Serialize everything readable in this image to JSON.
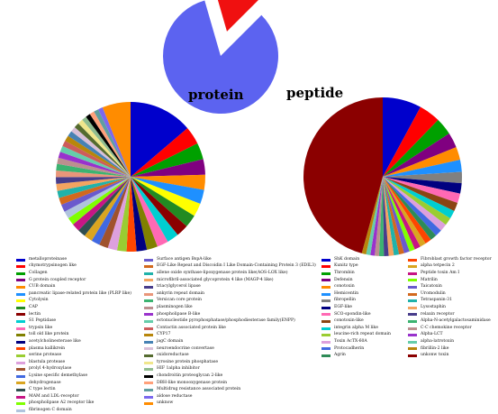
{
  "chart_data": [
    {
      "type": "pie",
      "title": "",
      "categories": [
        "protein",
        "peptide"
      ],
      "values": [
        83,
        17
      ],
      "colors": [
        "#5c63f0",
        "#f01010"
      ],
      "exploded": [
        "peptide"
      ]
    },
    {
      "type": "pie",
      "title": "",
      "group": "protein",
      "categories": [
        "metalloproteinase",
        "chymotrypsinogen like",
        "Collagen",
        "G protein coupled receptor",
        "CUB domain",
        "pancreatic lipase-related protein like (PLRP like)",
        "Cytolysin",
        "CAP",
        "lectin",
        "S1 Peptidase",
        "trypsin like",
        "toll old like protein",
        "acetylcholinesterase like",
        "plasma kallikrein",
        "serine protease",
        "blastula protease",
        "prolyl 4-hydroxylase",
        "Lysine specific demethylase",
        "dehydrogenase",
        "C type lectin",
        "MAM and LDL-receptor",
        "phospholipase A2 receptor like",
        "fibrinogen C domain",
        "Surface antigen BspA-like",
        "EGF-Like Repeat and Discoidin I Like Domain-Containing Protein 3 (EDIL3)",
        "allene oxide synthase-lipoxygenase protein like(AOS-LOX like)",
        "microfibril-associated glycoprotein 4 like (MAGP-4 like)",
        "triacylglycerol lipase",
        "ankyrin repeat domain",
        "Versican core protein",
        "plasminogen like",
        "phospholipase B-like",
        "ectonucleotide pyrophosphatase/phosphodiesterase family(ENPP)",
        "Contactin associated protein like",
        "CYP17",
        "jagC domain",
        "neuroendocrine convertase",
        "oxidoreductase",
        "tyrosine protein phosphatase",
        "HIF 1alpha inhibitor",
        "chondroitin proteoglycan 2-like",
        "DBH-like monooxygenase protein",
        "Multidrug resistance associated protein",
        "aldose reductase",
        "unknow"
      ],
      "values": [
        13.5,
        3.8,
        3.5,
        3.3,
        3.2,
        3,
        2.8,
        2.7,
        2.6,
        2.5,
        2.4,
        2.3,
        2.2,
        2.1,
        2,
        2,
        1.9,
        1.8,
        1.8,
        1.7,
        1.7,
        1.6,
        1.6,
        1.6,
        1.5,
        1.5,
        1.5,
        1.4,
        1.4,
        1.4,
        1.3,
        1.3,
        1.3,
        1.2,
        1.2,
        1.2,
        1.1,
        1.1,
        1.1,
        1,
        1,
        1,
        1,
        1,
        6
      ],
      "colors": [
        "#0000cc",
        "#ff0000",
        "#00a000",
        "#800080",
        "#ff8c00",
        "#1e90ff",
        "#ffff00",
        "#228b22",
        "#8b0000",
        "#00ced1",
        "#ff69b4",
        "#808000",
        "#000080",
        "#ff4500",
        "#9acd32",
        "#dda0dd",
        "#a0522d",
        "#4169e1",
        "#daa520",
        "#2f4f4f",
        "#c71585",
        "#7fff00",
        "#b0c4de",
        "#6a5acd",
        "#d2691e",
        "#20b2aa",
        "#f4a460",
        "#483d8b",
        "#e9967a",
        "#3cb371",
        "#bc8f8f",
        "#9932cc",
        "#66cdaa",
        "#cd5c5c",
        "#b8860b",
        "#4682b4",
        "#d8bfd8",
        "#556b2f",
        "#f0e68c",
        "#8fbc8f",
        "#000000",
        "#ffa07a",
        "#5f9ea0",
        "#7b68ee",
        "#ff8c00"
      ]
    },
    {
      "type": "pie",
      "title": "",
      "group": "peptide",
      "categories": [
        "ShK domain",
        "Kunitz type",
        "Thrombin",
        "Defensin",
        "conotoxin",
        "Hemicentin",
        "fibropellin",
        "EGF-like",
        "SCO-spondin-like",
        "conotoxin-like",
        "integrin alpha M like",
        "leucine-rich repeat domain",
        "Toxin AcTX-60A",
        "Protocadherin",
        "Agrin",
        "Fibroblast growth factor receptor",
        "alpha tetpecin 2",
        "Peptide toxin Am I",
        "Matrilin",
        "Taicatoxin",
        "Uromodulin",
        "Tetraspanin-31",
        "Lysostaphin",
        "relaxin receptor",
        "Alpha-N-acetylgalactosaminidase",
        "C-C chemokine receptor",
        "Alpha-LCT",
        "alpha-latrotoxin",
        "fibrillin-2 like",
        "unkonw toxin"
      ],
      "values": [
        9,
        5,
        4,
        3.5,
        3,
        2.8,
        2.6,
        2.4,
        2.2,
        2,
        1.9,
        1.8,
        1.7,
        1.6,
        1.5,
        1.5,
        1.4,
        1.4,
        1.3,
        1.3,
        1.2,
        1.2,
        1.2,
        1.1,
        1.1,
        1,
        1,
        1,
        1,
        52
      ],
      "colors": [
        "#0000cc",
        "#ff0000",
        "#00a000",
        "#800080",
        "#ff8c00",
        "#1e90ff",
        "#808080",
        "#000080",
        "#ff69b4",
        "#8b4513",
        "#00ced1",
        "#9acd32",
        "#dda0dd",
        "#4169e1",
        "#2e8b57",
        "#ff4500",
        "#daa520",
        "#c71585",
        "#7fff00",
        "#6a5acd",
        "#d2691e",
        "#20b2aa",
        "#f4a460",
        "#483d8b",
        "#3cb371",
        "#bc8f8f",
        "#9932cc",
        "#66cdaa",
        "#b8860b",
        "#8b0000"
      ]
    }
  ]
}
